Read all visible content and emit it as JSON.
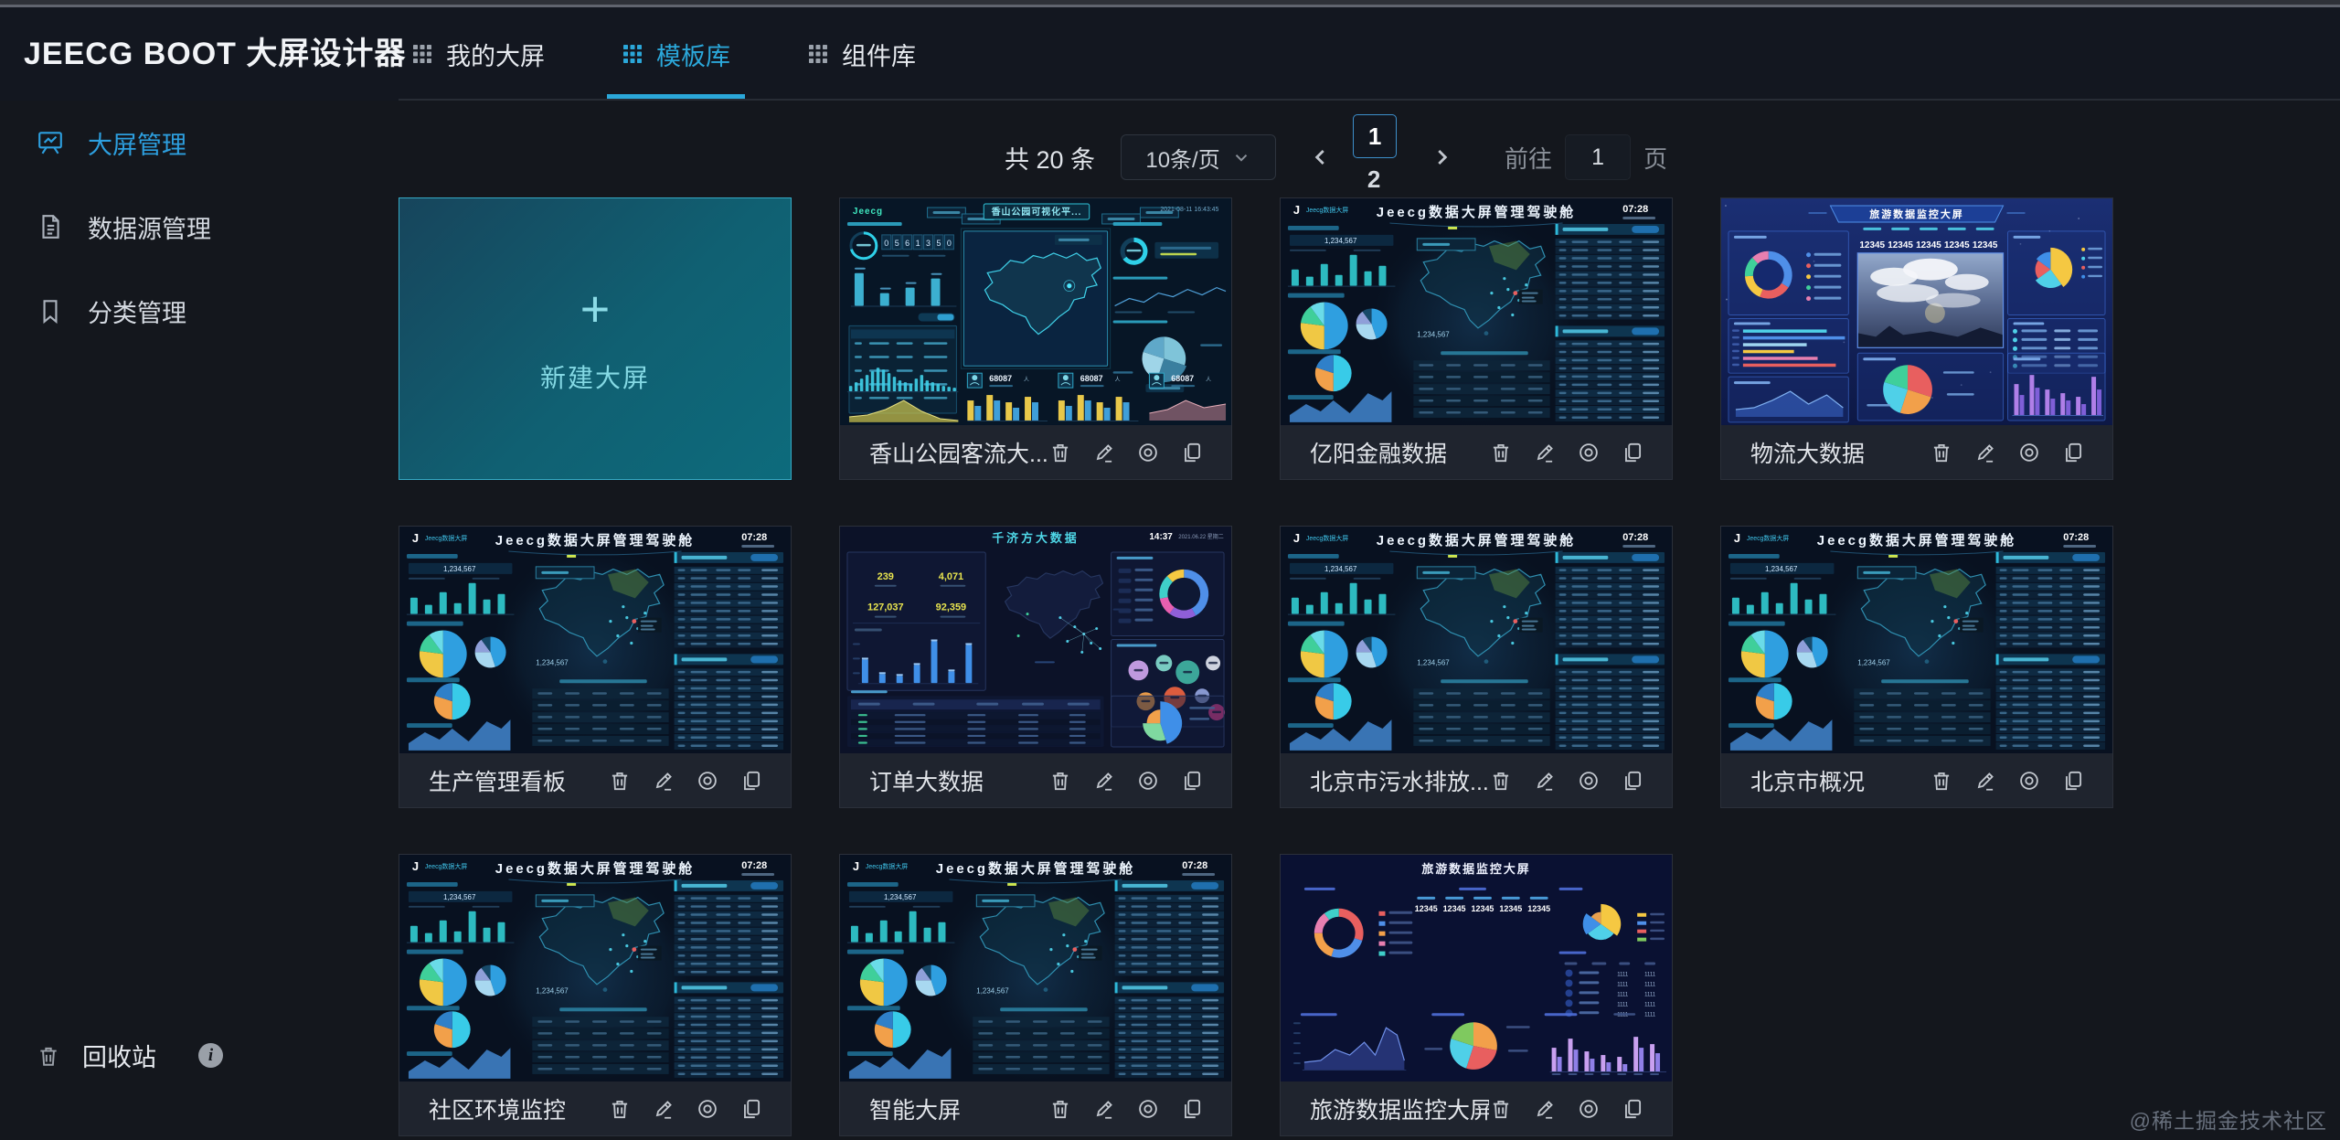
{
  "header": {
    "title": "JEECG BOOT 大屏设计器",
    "tabs": [
      {
        "name": "my-screens",
        "label": "我的大屏",
        "active": false
      },
      {
        "name": "template-library",
        "label": "模板库",
        "active": true
      },
      {
        "name": "component-library",
        "label": "组件库",
        "active": false
      }
    ]
  },
  "sidebar": {
    "items": [
      {
        "name": "screen-management",
        "label": "大屏管理",
        "icon": "presentation-board-icon",
        "active": true
      },
      {
        "name": "datasource-management",
        "label": "数据源管理",
        "icon": "document-icon",
        "active": false
      },
      {
        "name": "category-management",
        "label": "分类管理",
        "icon": "bookmark-icon",
        "active": false
      }
    ],
    "footer": {
      "recycle_label": "回收站",
      "icon": "trash-icon",
      "info_icon": "info-icon"
    }
  },
  "pagination": {
    "total_text": "共 20 条",
    "page_size": "10条/页",
    "pages": [
      {
        "label": "1",
        "active": true
      },
      {
        "label": "2",
        "active": false
      }
    ],
    "goto_label": "前往",
    "goto_value": "1",
    "goto_suffix": "页"
  },
  "new_card": {
    "plus": "+",
    "label": "新建大屏"
  },
  "card_actions": [
    {
      "name": "delete",
      "icon": "trash-icon"
    },
    {
      "name": "edit",
      "icon": "pencil-icon"
    },
    {
      "name": "preview",
      "icon": "eye-icon"
    },
    {
      "name": "copy",
      "icon": "copy-icon"
    }
  ],
  "cards": [
    {
      "title": "香山公园客流大...",
      "thumb": "xiangshan"
    },
    {
      "title": "亿阳金融数据",
      "thumb": "jeecg"
    },
    {
      "title": "物流大数据",
      "thumb": "tourism_photo"
    },
    {
      "title": "生产管理看板",
      "thumb": "jeecg"
    },
    {
      "title": "订单大数据",
      "thumb": "qianjifang"
    },
    {
      "title": "北京市污水排放...",
      "thumb": "jeecg"
    },
    {
      "title": "北京市概况",
      "thumb": "jeecg"
    },
    {
      "title": "社区环境监控",
      "thumb": "jeecg"
    },
    {
      "title": "智能大屏",
      "thumb": "jeecg"
    },
    {
      "title": "旅游数据监控大屏",
      "thumb": "tourism"
    }
  ],
  "thumbnails": {
    "jeecg": {
      "title": "Jeecg数据大屏管理驾驶舱",
      "logo": "Jeecg数据大屏",
      "time": "07:28",
      "big_number": "1,234,567"
    },
    "xiangshan": {
      "title": "香山公园可视化平...",
      "logo": "Jeecg",
      "timestamp": "2021-08-11 16:43:45",
      "digits": "0561350",
      "visitor_number": "68087",
      "unit": "人"
    },
    "tourism_photo": {
      "title": "旅游数据监控大屏",
      "stat": "12345"
    },
    "qianjifang": {
      "title": "千济方大数据",
      "time": "14:37",
      "date": "2021.06.22 星期二",
      "stats": [
        "239",
        "4,071",
        "127,037",
        "92,359"
      ]
    },
    "tourism": {
      "title": "旅游数据监控大屏",
      "stat": "12345",
      "table_value": "1111"
    }
  },
  "watermark": "@稀土掘金技术社区",
  "colors": {
    "accent": "#2ba7d9",
    "new_card_border": "#35a9c4",
    "active_page_border": "#3d8fcb"
  }
}
